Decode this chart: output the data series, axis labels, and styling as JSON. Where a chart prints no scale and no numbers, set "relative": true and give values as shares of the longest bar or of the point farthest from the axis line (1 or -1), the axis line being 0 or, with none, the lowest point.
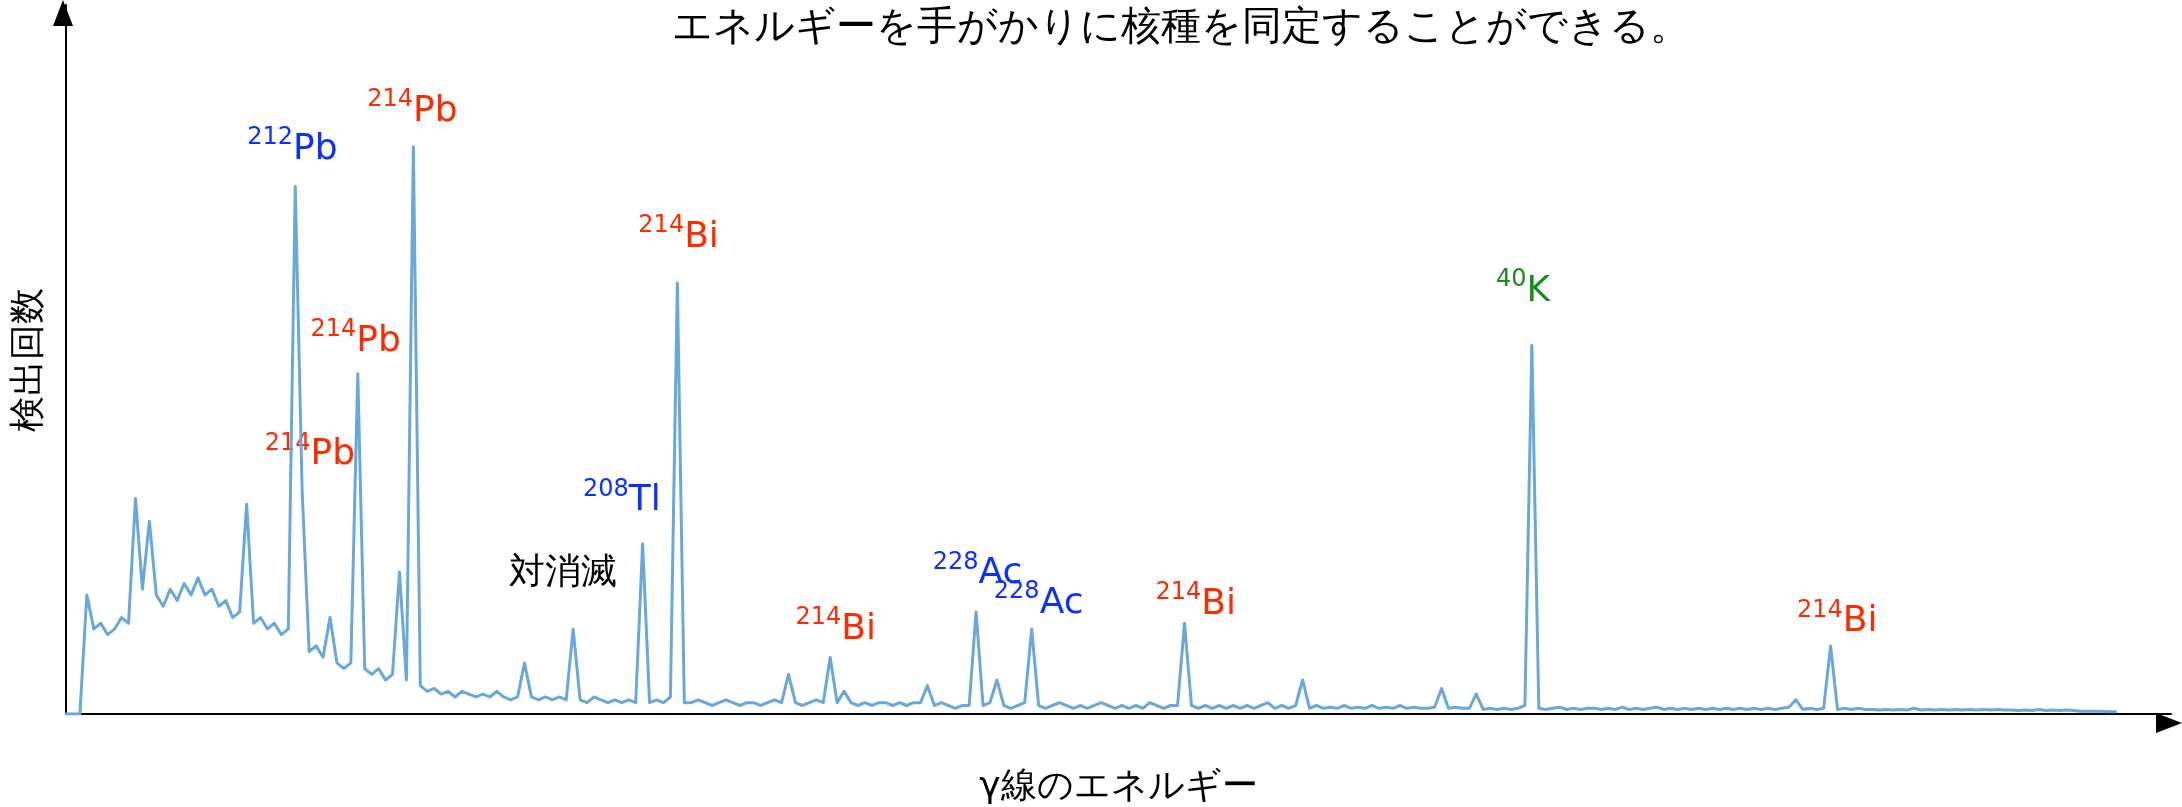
{
  "chart_data": {
    "type": "line",
    "relative": true,
    "title": "エネルギーを手がかりに核種を同定することができる。",
    "xlabel": "γ線のエネルギー",
    "ylabel": "検出回数",
    "annotations": [
      "$^{212}$Pb",
      "$^{214}$Pb",
      "$^{214}$Pb",
      "$^{214}$Pb",
      "対消滅",
      "$^{208}$Tl",
      "$^{214}$Bi",
      "$^{214}$Bi",
      "$^{228}$Ac",
      "$^{228}$Ac",
      "$^{214}$Bi",
      "$^{40}$K",
      "$^{214}$Bi"
    ],
    "categories": [
      null,
      null,
      null,
      null,
      null,
      null,
      null,
      null,
      null,
      null,
      null,
      null,
      null,
      null,
      null,
      null,
      null,
      null,
      null,
      null,
      null,
      null,
      null,
      null,
      null,
      null,
      null,
      null,
      null,
      null,
      null,
      null,
      null,
      null,
      null,
      null,
      null,
      null,
      null,
      null,
      null,
      null,
      null,
      null,
      null,
      null,
      null,
      null,
      null,
      null,
      null,
      null,
      null,
      null,
      null,
      null,
      null,
      null,
      null,
      null,
      null,
      null,
      null,
      null,
      null,
      null,
      null,
      null,
      null,
      null,
      null,
      null,
      null,
      null,
      null,
      null,
      null,
      null,
      null,
      null,
      null,
      null,
      null,
      null,
      null,
      null,
      null,
      null,
      null,
      null,
      null,
      null,
      null,
      null,
      null,
      null,
      null,
      null,
      null,
      null,
      null,
      null,
      null,
      null,
      null,
      null,
      null,
      null,
      null,
      null,
      null,
      null,
      null,
      null,
      null,
      null,
      null,
      null,
      null,
      null,
      null,
      null,
      null,
      null,
      null,
      null,
      null,
      null,
      null,
      null,
      null,
      null,
      null,
      null,
      null,
      null,
      null,
      null,
      null,
      null,
      null,
      null,
      null,
      null,
      null,
      null,
      null,
      null,
      null,
      null,
      null,
      null,
      null,
      null,
      null,
      null,
      null,
      null,
      null,
      null,
      null,
      null,
      null,
      null,
      null,
      null,
      null,
      null,
      null,
      null,
      null,
      null,
      null,
      null,
      null,
      null,
      null,
      null,
      null,
      null,
      null,
      null,
      null,
      null,
      null,
      null,
      null,
      null,
      null,
      null,
      null,
      null,
      null,
      null,
      null,
      null,
      null,
      null,
      null,
      null,
      null,
      null,
      null,
      null,
      null,
      null,
      null,
      null,
      null,
      null,
      null,
      null,
      null,
      null,
      null,
      null,
      null,
      null,
      null,
      null,
      null,
      null,
      null,
      null,
      null,
      null,
      null,
      null,
      null,
      null,
      null,
      null,
      null,
      null,
      null,
      null,
      null,
      null,
      null,
      null,
      null,
      null,
      null,
      null,
      null,
      null,
      null,
      null,
      null,
      null,
      null,
      null,
      null,
      null,
      null,
      null,
      null,
      null,
      null,
      null,
      null,
      null,
      null,
      null,
      null,
      null,
      null,
      null,
      null,
      null,
      null,
      null,
      null,
      null,
      null,
      null,
      null,
      null,
      null,
      null,
      null,
      null,
      null,
      null,
      null,
      null,
      null,
      null,
      null,
      null,
      null,
      null,
      null,
      null,
      null,
      null,
      null,
      null,
      null,
      null,
      null,
      null,
      null,
      null
    ],
    "series": [
      {
        "color": "#6aa8da",
        "values": [
          0,
          0,
          0,
          0.21,
          0.15,
          0.16,
          0.14,
          0.15,
          0.17,
          0.16,
          0.38,
          0.22,
          0.34,
          0.21,
          0.19,
          0.22,
          0.2,
          0.23,
          0.21,
          0.24,
          0.21,
          0.22,
          0.19,
          0.2,
          0.17,
          0.18,
          0.37,
          0.16,
          0.17,
          0.15,
          0.16,
          0.14,
          0.15,
          0.93,
          0.39,
          0.11,
          0.12,
          0.1,
          0.17,
          0.09,
          0.08,
          0.09,
          0.6,
          0.08,
          0.07,
          0.08,
          0.06,
          0.07,
          0.25,
          0.06,
          1,
          0.05,
          0.04,
          0.045,
          0.035,
          0.04,
          0.03,
          0.04,
          0.035,
          0.03,
          0.035,
          0.03,
          0.04,
          0.03,
          0.025,
          0.03,
          0.09,
          0.03,
          0.025,
          0.03,
          0.025,
          0.03,
          0.025,
          0.15,
          0.025,
          0.02,
          0.03,
          0.025,
          0.02,
          0.025,
          0.02,
          0.025,
          0.02,
          0.3,
          0.02,
          0.025,
          0.02,
          0.03,
          0.76,
          0.02,
          0.02,
          0.025,
          0.02,
          0.015,
          0.02,
          0.025,
          0.02,
          0.015,
          0.02,
          0.02,
          0.015,
          0.02,
          0.025,
          0.02,
          0.07,
          0.02,
          0.015,
          0.02,
          0.025,
          0.02,
          0.1,
          0.02,
          0.04,
          0.02,
          0.015,
          0.02,
          0.015,
          0.02,
          0.02,
          0.015,
          0.02,
          0.015,
          0.02,
          0.02,
          0.05,
          0.015,
          0.02,
          0.015,
          0.01,
          0.015,
          0.015,
          0.18,
          0.015,
          0.02,
          0.06,
          0.015,
          0.01,
          0.015,
          0.02,
          0.15,
          0.015,
          0.01,
          0.015,
          0.02,
          0.015,
          0.01,
          0.015,
          0.01,
          0.015,
          0.02,
          0.015,
          0.01,
          0.015,
          0.01,
          0.015,
          0.01,
          0.02,
          0.015,
          0.01,
          0.015,
          0.015,
          0.16,
          0.015,
          0.01,
          0.015,
          0.01,
          0.015,
          0.01,
          0.015,
          0.01,
          0.015,
          0.01,
          0.015,
          0.02,
          0.01,
          0.015,
          0.01,
          0.015,
          0.06,
          0.01,
          0.015,
          0.01,
          0.012,
          0.01,
          0.015,
          0.01,
          0.012,
          0.01,
          0.015,
          0.01,
          0.012,
          0.01,
          0.015,
          0.01,
          0.012,
          0.01,
          0.01,
          0.012,
          0.045,
          0.01,
          0.012,
          0.01,
          0.01,
          0.035,
          0.008,
          0.01,
          0.008,
          0.01,
          0.008,
          0.01,
          0.015,
          0.65,
          0.01,
          0.008,
          0.01,
          0.012,
          0.008,
          0.01,
          0.008,
          0.01,
          0.01,
          0.008,
          0.01,
          0.008,
          0.012,
          0.008,
          0.01,
          0.008,
          0.01,
          0.012,
          0.008,
          0.01,
          0.008,
          0.01,
          0.008,
          0.01,
          0.008,
          0.01,
          0.008,
          0.01,
          0.008,
          0.01,
          0.008,
          0.01,
          0.008,
          0.01,
          0.008,
          0.01,
          0.012,
          0.025,
          0.008,
          0.01,
          0.008,
          0.01,
          0.12,
          0.008,
          0.01,
          0.008,
          0.01,
          0.008,
          0.008,
          0.007,
          0.008,
          0.007,
          0.008,
          0.007,
          0.01,
          0.007,
          0.008,
          0.007,
          0.008,
          0.007,
          0.008,
          0.007,
          0.008,
          0.007,
          0.008,
          0.007,
          0.008,
          0.007,
          0.007,
          0.006,
          0.007,
          0.006,
          0.008,
          0.006,
          0.007,
          0.006,
          0.007,
          0.006,
          0.005,
          0.005,
          0.005,
          0.005,
          0.004,
          0.004,
          null,
          null,
          null,
          null,
          null,
          null,
          null,
          null
        ]
      }
    ]
  }
}
